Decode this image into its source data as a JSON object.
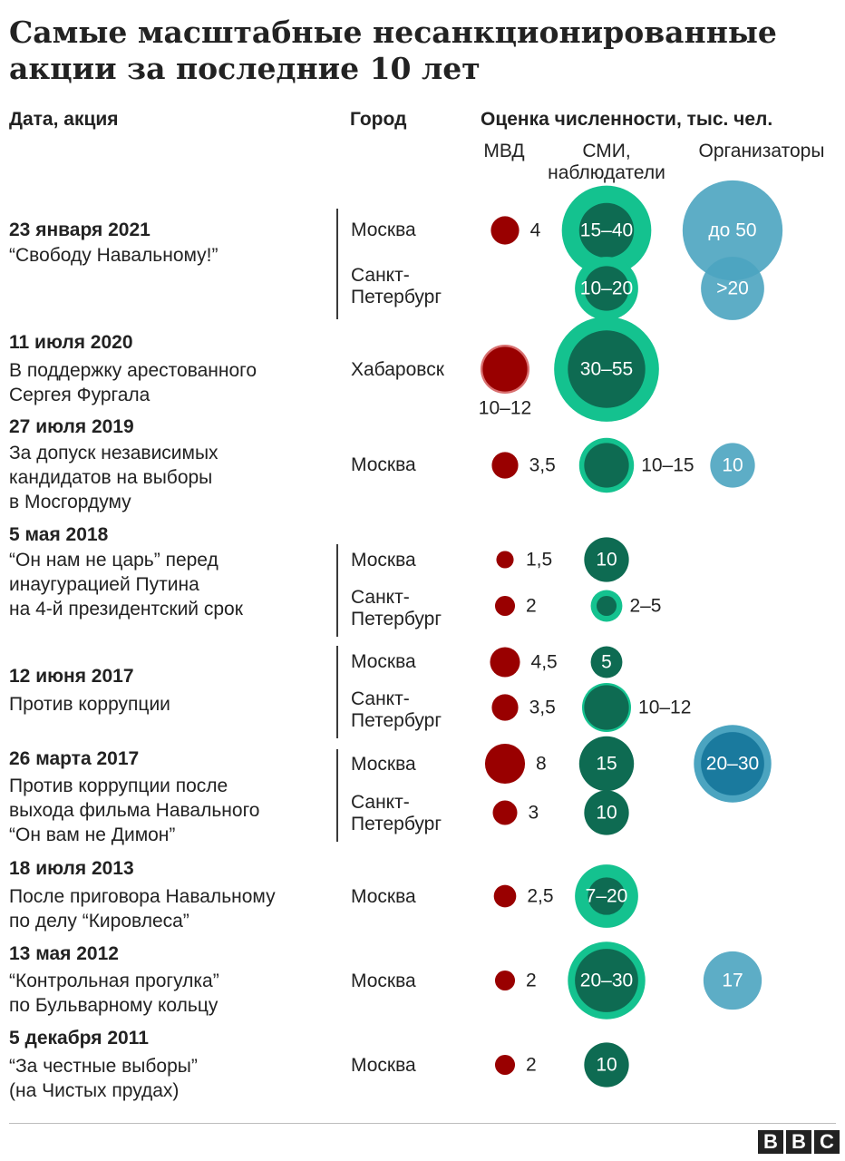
{
  "title_lines": [
    "Самые масштабные несанкционированные",
    "акции за последние 10 лет"
  ],
  "headers": {
    "date_action": "Дата, акция",
    "city": "Город",
    "estimate": "Оценка численности, тыс. чел."
  },
  "sources": {
    "mvd": "МВД",
    "media": [
      "СМИ,",
      "наблюдатели"
    ],
    "organizers": "Организаторы"
  },
  "events": [
    {
      "date": "23 января 2021",
      "name_lines": [
        "“Свободу Навальному!”"
      ]
    },
    {
      "date": "11 июля 2020",
      "name_lines": [
        "В поддержку арестованного",
        "Сергея Фургала"
      ]
    },
    {
      "date": "27 июля 2019",
      "name_lines": [
        "За допуск независимых",
        "кандидатов на выборы",
        "в Мосгордуму"
      ]
    },
    {
      "date": "5 мая 2018",
      "name_lines": [
        "“Он нам не царь” перед",
        "инаугурацией Путина",
        "на 4-й президентский срок"
      ]
    },
    {
      "date": "12 июня 2017",
      "name_lines": [
        "Против коррупции"
      ]
    },
    {
      "date": "26 марта 2017",
      "name_lines": [
        "Против коррупции после",
        "выхода фильма Навального",
        "“Он вам не Димон”"
      ]
    },
    {
      "date": "18 июля 2013",
      "name_lines": [
        "После приговора Навальному",
        "по делу “Кировлеса”"
      ]
    },
    {
      "date": "13 мая 2012",
      "name_lines": [
        "“Контрольная прогулка”",
        "по Бульварному кольцу"
      ]
    },
    {
      "date": "5 декабря 2011",
      "name_lines": [
        "“За честные выборы”",
        "(на Чистых прудах)"
      ]
    }
  ],
  "cities": {
    "moscow": "Москва",
    "spb": [
      "Санкт-",
      "Петербург"
    ],
    "khabarovsk": "Хабаровск"
  },
  "colors": {
    "mvd": "#990000",
    "media_dark": "#0e6b52",
    "media_light": "#14c28f",
    "org": "#4ba4c0",
    "org_dark": "#1a7a9e"
  },
  "chart_data": {
    "type": "bubble",
    "unit": "тыс. чел.",
    "columns": [
      "МВД",
      "СМИ, наблюдатели",
      "Организаторы"
    ],
    "rows": [
      {
        "date": "23 января 2021",
        "city": "Москва",
        "mvd": {
          "label": "4",
          "value": 4
        },
        "media": {
          "label": "15–40",
          "min": 15,
          "max": 40
        },
        "organizers": {
          "label": "до 50",
          "max": 50
        }
      },
      {
        "date": "23 января 2021",
        "city": "Санкт-Петербург",
        "mvd": null,
        "media": {
          "label": "10–20",
          "min": 10,
          "max": 20
        },
        "organizers": {
          "label": ">20",
          "min": 20
        }
      },
      {
        "date": "11 июля 2020",
        "city": "Хабаровск",
        "mvd": {
          "label": "10–12",
          "min": 10,
          "max": 12
        },
        "media": {
          "label": "30–55",
          "min": 30,
          "max": 55
        },
        "organizers": null
      },
      {
        "date": "27 июля 2019",
        "city": "Москва",
        "mvd": {
          "label": "3,5",
          "value": 3.5
        },
        "media": {
          "label": "10–15",
          "min": 10,
          "max": 15
        },
        "organizers": {
          "label": "10",
          "value": 10
        }
      },
      {
        "date": "5 мая 2018",
        "city": "Москва",
        "mvd": {
          "label": "1,5",
          "value": 1.5
        },
        "media": {
          "label": "10",
          "value": 10
        },
        "organizers": null
      },
      {
        "date": "5 мая 2018",
        "city": "Санкт-Петербург",
        "mvd": {
          "label": "2",
          "value": 2
        },
        "media": {
          "label": "2–5",
          "min": 2,
          "max": 5
        },
        "organizers": null
      },
      {
        "date": "12 июня 2017",
        "city": "Москва",
        "mvd": {
          "label": "4,5",
          "value": 4.5
        },
        "media": {
          "label": "5",
          "value": 5
        },
        "organizers": null
      },
      {
        "date": "12 июня 2017",
        "city": "Санкт-Петербург",
        "mvd": {
          "label": "3,5",
          "value": 3.5
        },
        "media": {
          "label": "10–12",
          "min": 10,
          "max": 12
        },
        "organizers": null
      },
      {
        "date": "26 марта 2017",
        "city": "Москва",
        "mvd": {
          "label": "8",
          "value": 8
        },
        "media": {
          "label": "15",
          "value": 15
        },
        "organizers": {
          "label": "20–30",
          "min": 20,
          "max": 30
        }
      },
      {
        "date": "26 марта 2017",
        "city": "Санкт-Петербург",
        "mvd": {
          "label": "3",
          "value": 3
        },
        "media": {
          "label": "10",
          "value": 10
        },
        "organizers": null
      },
      {
        "date": "18 июля 2013",
        "city": "Москва",
        "mvd": {
          "label": "2,5",
          "value": 2.5
        },
        "media": {
          "label": "7–20",
          "min": 7,
          "max": 20
        },
        "organizers": null
      },
      {
        "date": "13 мая 2012",
        "city": "Москва",
        "mvd": {
          "label": "2",
          "value": 2
        },
        "media": {
          "label": "20–30",
          "min": 20,
          "max": 30
        },
        "organizers": {
          "label": "17",
          "value": 17
        }
      },
      {
        "date": "5 декабря 2011",
        "city": "Москва",
        "mvd": {
          "label": "2",
          "value": 2
        },
        "media": {
          "label": "10",
          "value": 10
        },
        "organizers": null
      }
    ]
  },
  "brand": [
    "B",
    "B",
    "C"
  ]
}
